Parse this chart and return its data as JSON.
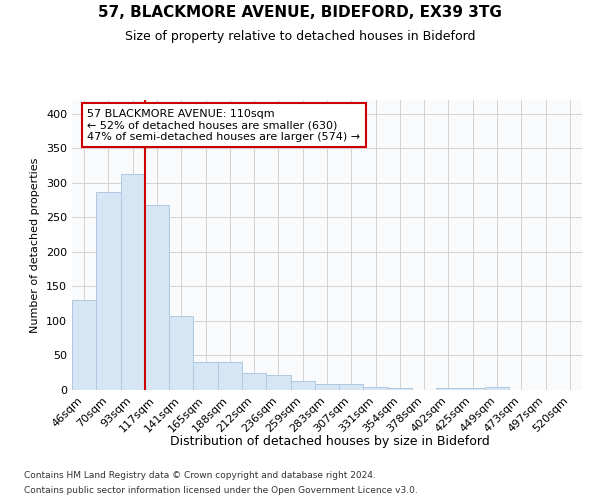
{
  "title1": "57, BLACKMORE AVENUE, BIDEFORD, EX39 3TG",
  "title2": "Size of property relative to detached houses in Bideford",
  "xlabel": "Distribution of detached houses by size in Bideford",
  "ylabel": "Number of detached properties",
  "categories": [
    "46sqm",
    "70sqm",
    "93sqm",
    "117sqm",
    "141sqm",
    "165sqm",
    "188sqm",
    "212sqm",
    "236sqm",
    "259sqm",
    "283sqm",
    "307sqm",
    "331sqm",
    "354sqm",
    "378sqm",
    "402sqm",
    "425sqm",
    "449sqm",
    "473sqm",
    "497sqm",
    "520sqm"
  ],
  "values": [
    130,
    287,
    313,
    268,
    107,
    40,
    40,
    25,
    22,
    13,
    9,
    9,
    5,
    3,
    0,
    3,
    3,
    5,
    0,
    0,
    0
  ],
  "bar_color": "#d6e6f5",
  "bar_edgecolor": "#b0c8e0",
  "vline_color": "#cc0000",
  "vline_xindex": 2.5,
  "annotation_line1": "57 BLACKMORE AVENUE: 110sqm",
  "annotation_line2": "← 52% of detached houses are smaller (630)",
  "annotation_line3": "47% of semi-detached houses are larger (574) →",
  "annotation_box_facecolor": "#ffffff",
  "annotation_box_edgecolor": "#cc0000",
  "ylim": [
    0,
    420
  ],
  "yticks": [
    0,
    50,
    100,
    150,
    200,
    250,
    300,
    350,
    400
  ],
  "grid_color": "#cccccc",
  "background_color": "#ffffff",
  "plot_background": "#f8fafc",
  "footer1": "Contains HM Land Registry data © Crown copyright and database right 2024.",
  "footer2": "Contains public sector information licensed under the Open Government Licence v3.0.",
  "title1_fontsize": 11,
  "title2_fontsize": 9,
  "ylabel_fontsize": 8,
  "xlabel_fontsize": 9,
  "tick_fontsize": 8,
  "footer_fontsize": 6.5
}
